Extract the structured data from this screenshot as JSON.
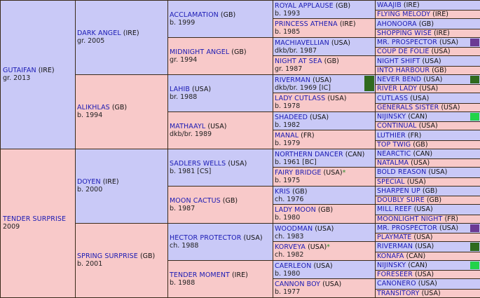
{
  "gen1": [
    {
      "name": "GUTAIFAN",
      "country": "(IRE)",
      "detail": "gr. 2013"
    },
    {
      "name": "TENDER SURPRISE",
      "country": "",
      "detail": "2009"
    }
  ],
  "gen2": [
    {
      "name": "DARK ANGEL",
      "country": "(IRE)",
      "detail": "gr. 2005"
    },
    {
      "name": "ALIKHLAS",
      "country": "(GB)",
      "detail": "b. 1994"
    },
    {
      "name": "DOYEN",
      "country": "(IRE)",
      "detail": "b. 2000"
    },
    {
      "name": "SPRING SURPRISE",
      "country": "(GB)",
      "detail": "b. 2001"
    }
  ],
  "gen3": [
    {
      "name": "ACCLAMATION",
      "country": "(GB)",
      "detail": "b. 1999"
    },
    {
      "name": "MIDNIGHT ANGEL",
      "country": "(GB)",
      "detail": "gr. 1994"
    },
    {
      "name": "LAHIB",
      "country": "(USA)",
      "detail": "br. 1988"
    },
    {
      "name": "MATHAAYL",
      "country": "(USA)",
      "detail": "dkb/br. 1989"
    },
    {
      "name": "SADLERS WELLS",
      "country": "(USA)",
      "detail": "b. 1981 [CS]"
    },
    {
      "name": "MOON CACTUS",
      "country": "(GB)",
      "detail": "b. 1987"
    },
    {
      "name": "HECTOR PROTECTOR",
      "country": "(USA)",
      "detail": "ch. 1988"
    },
    {
      "name": "TENDER MOMENT",
      "country": "(IRE)",
      "detail": "b. 1988"
    }
  ],
  "gen4": [
    {
      "name": "ROYAL APPLAUSE",
      "country": "(GB)",
      "detail": "b. 1993"
    },
    {
      "name": "PRINCESS ATHENA",
      "country": "(IRE)",
      "detail": "b. 1985"
    },
    {
      "name": "MACHIAVELLIAN",
      "country": "(USA)",
      "detail": "dkb/br. 1987"
    },
    {
      "name": "NIGHT AT SEA",
      "country": "(GB)",
      "detail": "gr. 1987"
    },
    {
      "name": "RIVERMAN",
      "country": "(USA)",
      "detail": "dkb/br. 1969 [IC]"
    },
    {
      "name": "LADY CUTLASS",
      "country": "(USA)",
      "detail": "b. 1978"
    },
    {
      "name": "SHADEED",
      "country": "(USA)",
      "detail": "b. 1982"
    },
    {
      "name": "MANAL",
      "country": "(FR)",
      "detail": "b. 1979"
    },
    {
      "name": "NORTHERN DANCER",
      "country": "(CAN)",
      "detail": "b. 1961 [BC]"
    },
    {
      "name": "FAIRY BRIDGE",
      "country": "(USA)",
      "detail": "b. 1975",
      "star": "*"
    },
    {
      "name": "KRIS",
      "country": "(GB)",
      "detail": "ch. 1976"
    },
    {
      "name": "LADY MOON",
      "country": "(GB)",
      "detail": "b. 1980"
    },
    {
      "name": "WOODMAN",
      "country": "(USA)",
      "detail": "ch. 1983"
    },
    {
      "name": "KORVEYA",
      "country": "(USA)",
      "detail": "ch. 1982",
      "star": "*"
    },
    {
      "name": "CAERLEON",
      "country": "(USA)",
      "detail": "b. 1980"
    },
    {
      "name": "CANNON BOY",
      "country": "(USA)",
      "detail": "b. 1977"
    }
  ],
  "gen5": [
    {
      "name": "WAAJIB",
      "country": "(IRE)"
    },
    {
      "name": "FLYING MELODY",
      "country": "(IRE)"
    },
    {
      "name": "AHONOORA",
      "country": "(GB)"
    },
    {
      "name": "SHOPPING WISE",
      "country": "(IRE)"
    },
    {
      "name": "MR. PROSPECTOR",
      "country": "(USA)",
      "swatch": "#6a3a94"
    },
    {
      "name": "COUP DE FOLIE",
      "country": "(USA)"
    },
    {
      "name": "NIGHT SHIFT",
      "country": "(USA)"
    },
    {
      "name": "INTO HARBOUR",
      "country": "(GB)"
    },
    {
      "name": "NEVER BEND",
      "country": "(USA)",
      "swatch": "#2f6a1e"
    },
    {
      "name": "RIVER LADY",
      "country": "(USA)"
    },
    {
      "name": "CUTLASS",
      "country": "(USA)"
    },
    {
      "name": "GENERALS SISTER",
      "country": "(USA)"
    },
    {
      "name": "NIJINSKY",
      "country": "(CAN)",
      "swatch": "#22d34a"
    },
    {
      "name": "CONTINUAL",
      "country": "(USA)"
    },
    {
      "name": "LUTHIER",
      "country": "(FR)"
    },
    {
      "name": "TOP TWIG",
      "country": "(GB)"
    },
    {
      "name": "NEARCTIC",
      "country": "(CAN)"
    },
    {
      "name": "NATALMA",
      "country": "(USA)"
    },
    {
      "name": "BOLD REASON",
      "country": "(USA)"
    },
    {
      "name": "SPECIAL",
      "country": "(USA)"
    },
    {
      "name": "SHARPEN UP",
      "country": "(GB)"
    },
    {
      "name": "DOUBLY SURE",
      "country": "(GB)"
    },
    {
      "name": "MILL REEF",
      "country": "(USA)"
    },
    {
      "name": "MOONLIGHT NIGHT",
      "country": "(FR)"
    },
    {
      "name": "MR. PROSPECTOR",
      "country": "(USA)",
      "swatch": "#6a3a94"
    },
    {
      "name": "PLAYMATE",
      "country": "(USA)"
    },
    {
      "name": "RIVERMAN",
      "country": "(USA)",
      "swatch": "#2f6a1e"
    },
    {
      "name": "KONAFA",
      "country": "(CAN)"
    },
    {
      "name": "NIJINSKY",
      "country": "(CAN)",
      "swatch": "#22d34a"
    },
    {
      "name": "FORESEER",
      "country": "(USA)"
    },
    {
      "name": "CANONERO",
      "country": "(USA)"
    },
    {
      "name": "TRANSITORY",
      "country": "(USA)"
    }
  ]
}
